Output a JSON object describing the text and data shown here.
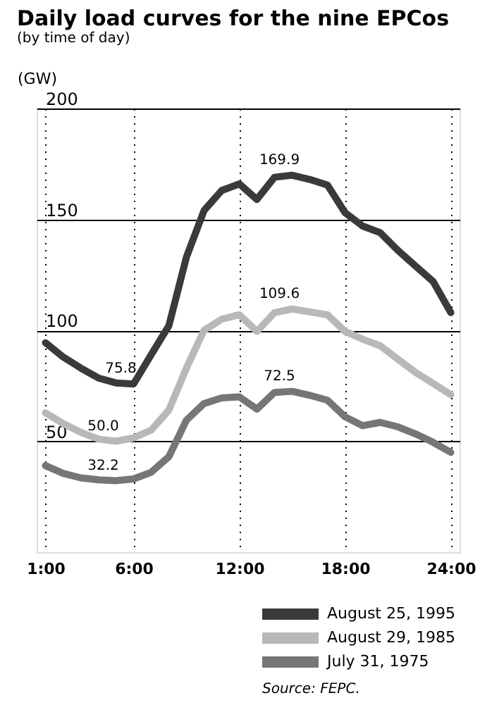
{
  "chart_data": {
    "type": "line",
    "title": "Daily load curves for the nine EPCos",
    "subtitle": "(by time of day)",
    "ylabel": "(GW)",
    "x": [
      1,
      2,
      3,
      4,
      5,
      6,
      7,
      8,
      9,
      10,
      11,
      12,
      13,
      14,
      15,
      16,
      17,
      18,
      19,
      20,
      21,
      22,
      23,
      24
    ],
    "series": [
      {
        "name": "August 25, 1995",
        "color": "#3a3a3a",
        "values": [
          94.4,
          88,
          83,
          78.5,
          76.3,
          75.8,
          89,
          102,
          133,
          154,
          163,
          166,
          159,
          169,
          169.9,
          168,
          165.5,
          153,
          147,
          144,
          136,
          129,
          122,
          108
        ],
        "value_labels": [
          null,
          null,
          null,
          null,
          null,
          "75.8",
          null,
          null,
          null,
          null,
          null,
          null,
          null,
          null,
          "169.9",
          null,
          null,
          null,
          null,
          null,
          null,
          null,
          null,
          null
        ]
      },
      {
        "name": "August 29, 1985",
        "color": "#b8b8b8",
        "values": [
          62.8,
          58,
          54,
          51,
          50.0,
          51.5,
          55,
          64,
          83,
          100,
          105,
          107,
          99.5,
          108,
          109.6,
          108.3,
          107,
          99.5,
          96,
          93,
          87,
          81,
          76,
          71
        ],
        "value_labels": [
          null,
          null,
          null,
          null,
          "50.0",
          null,
          null,
          null,
          null,
          null,
          null,
          null,
          null,
          null,
          "109.6",
          null,
          null,
          null,
          null,
          null,
          null,
          null,
          null,
          null
        ]
      },
      {
        "name": "July 31, 1975",
        "color": "#767676",
        "values": [
          39,
          35.5,
          33.5,
          32.6,
          32.2,
          33,
          36,
          43,
          59.5,
          67,
          69.5,
          70,
          64.5,
          72,
          72.5,
          70.7,
          68.5,
          61,
          57,
          58.5,
          56.5,
          53.3,
          49.5,
          45
        ],
        "value_labels": [
          null,
          null,
          null,
          null,
          "32.2",
          null,
          null,
          null,
          null,
          null,
          null,
          null,
          null,
          null,
          "72.5",
          null,
          null,
          null,
          null,
          null,
          null,
          null,
          null,
          null
        ]
      }
    ],
    "xlim": [
      0.5,
      24.5
    ],
    "ylim": [
      0,
      200
    ],
    "xticks": [
      {
        "value": 1,
        "label": "1:00"
      },
      {
        "value": 6,
        "label": "6:00"
      },
      {
        "value": 12,
        "label": "12:00"
      },
      {
        "value": 18,
        "label": "18:00"
      },
      {
        "value": 24,
        "label": "24:00"
      }
    ],
    "yticks": [
      50,
      100,
      150,
      200
    ],
    "grid": true,
    "legend": "bottom right",
    "marker": "none",
    "line_style": "solid",
    "annotations": [
      "Source: FEPC."
    ]
  }
}
